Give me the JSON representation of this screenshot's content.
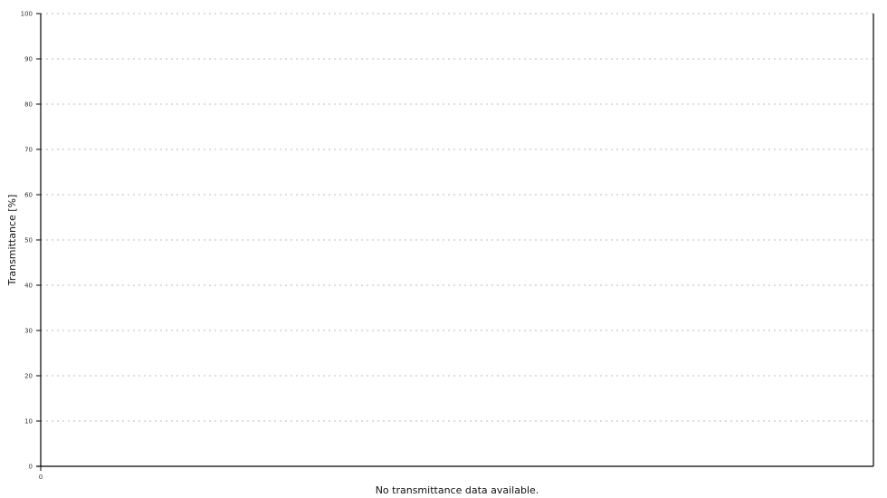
{
  "chart_data": {
    "type": "line",
    "title": "",
    "xlabel": "",
    "ylabel": "Transmittance [%]",
    "ylim": [
      0,
      100
    ],
    "yticks": [
      "0",
      "10",
      "20",
      "30",
      "40",
      "50",
      "60",
      "70",
      "80",
      "90",
      "100"
    ],
    "xticks": [
      "0"
    ],
    "grid": true,
    "series": [],
    "empty_message": "No transmittance data available.",
    "colors": {
      "axis": "#000000",
      "grid": "#bbbbbb"
    }
  }
}
